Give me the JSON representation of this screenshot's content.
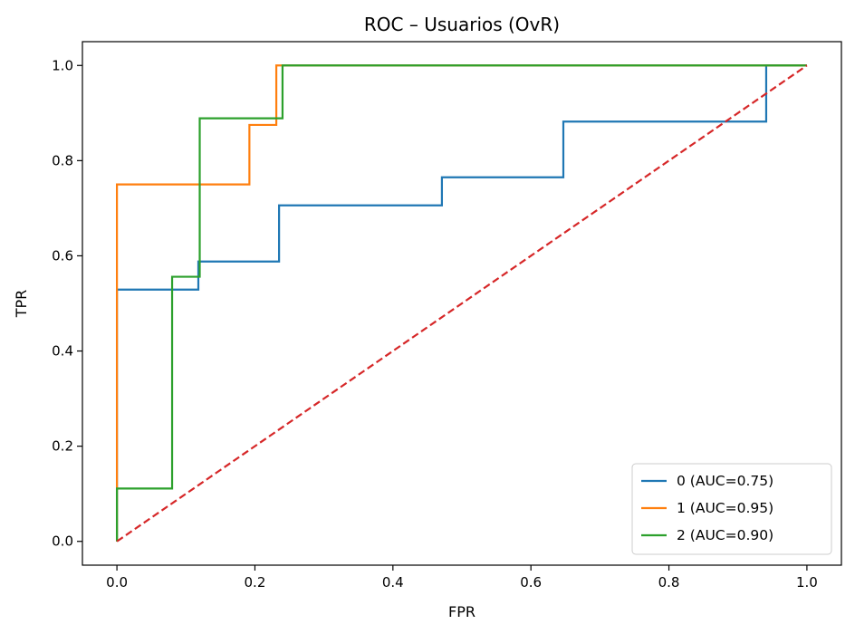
{
  "chart_data": {
    "type": "line",
    "title": "ROC – Usuarios (OvR)",
    "xlabel": "FPR",
    "ylabel": "TPR",
    "xlim": [
      -0.05,
      1.05
    ],
    "ylim": [
      -0.05,
      1.05
    ],
    "xticks": [
      0.0,
      0.2,
      0.4,
      0.6,
      0.8,
      1.0
    ],
    "yticks": [
      0.0,
      0.2,
      0.4,
      0.6,
      0.8,
      1.0
    ],
    "xtick_labels": [
      "0.0",
      "0.2",
      "0.4",
      "0.6",
      "0.8",
      "1.0"
    ],
    "ytick_labels": [
      "0.0",
      "0.2",
      "0.4",
      "0.6",
      "0.8",
      "1.0"
    ],
    "grid": false,
    "legend_position": "lower-right",
    "series": [
      {
        "name": "0 (AUC=0.75)",
        "color": "#1f77b4",
        "x": [
          0.0,
          0.0,
          0.118,
          0.118,
          0.235,
          0.235,
          0.471,
          0.471,
          0.647,
          0.647,
          0.941,
          0.941,
          1.0
        ],
        "y": [
          0.0,
          0.529,
          0.529,
          0.588,
          0.588,
          0.706,
          0.706,
          0.765,
          0.765,
          0.882,
          0.882,
          1.0,
          1.0
        ]
      },
      {
        "name": "1 (AUC=0.95)",
        "color": "#ff7f0e",
        "x": [
          0.0,
          0.0,
          0.192,
          0.192,
          0.231,
          0.231,
          1.0
        ],
        "y": [
          0.0,
          0.75,
          0.75,
          0.875,
          0.875,
          1.0,
          1.0
        ]
      },
      {
        "name": "2 (AUC=0.90)",
        "color": "#2ca02c",
        "x": [
          0.0,
          0.0,
          0.08,
          0.08,
          0.12,
          0.12,
          0.24,
          0.24,
          1.0
        ],
        "y": [
          0.0,
          0.111,
          0.111,
          0.556,
          0.556,
          0.889,
          0.889,
          1.0,
          1.0
        ]
      }
    ],
    "reference_line": {
      "color": "#d62728",
      "style": "dashed",
      "x": [
        0.0,
        1.0
      ],
      "y": [
        0.0,
        1.0
      ]
    }
  }
}
